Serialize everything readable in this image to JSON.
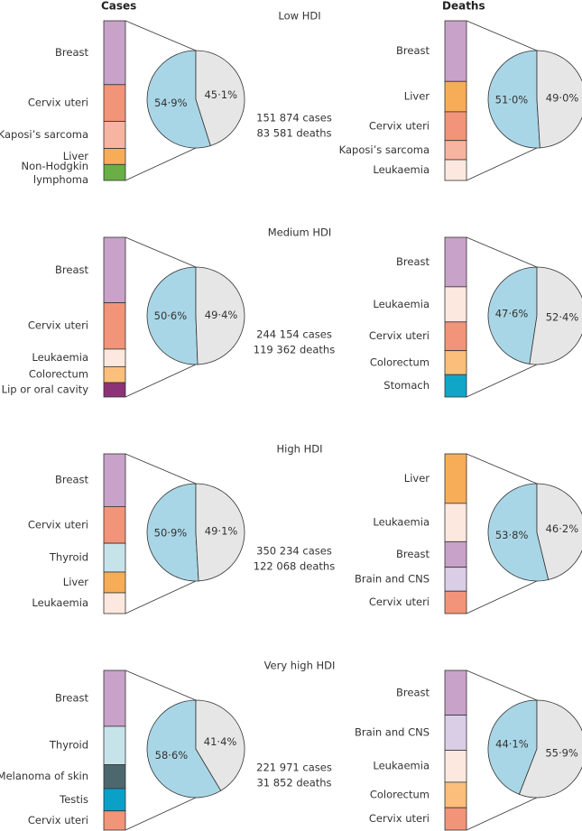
{
  "headers": {
    "cases": "Cases",
    "deaths": "Deaths"
  },
  "chart_data": [
    {
      "type": "pie-of-bar",
      "title": "Low HDI",
      "summary": [
        "151 874 cases",
        "83 581 deaths"
      ],
      "cases": {
        "pie": {
          "values": [
            54.9,
            45.1
          ],
          "value_labels": [
            "54·9%",
            "45·1%"
          ],
          "colors": [
            "#a9d6e6",
            "#e6e6e6"
          ]
        },
        "bar": {
          "categories": [
            "Breast",
            "Cervix uteri",
            "Kaposi’s sarcoma",
            "Liver",
            "Non-Hodgkin lymphoma"
          ],
          "values": [
            40,
            23,
            17,
            10,
            10
          ],
          "colors": [
            "#c8a2c8",
            "#f29479",
            "#f7b5a1",
            "#f7ad58",
            "#6aae46"
          ]
        }
      },
      "deaths": {
        "pie": {
          "values": [
            51.0,
            49.0
          ],
          "value_labels": [
            "51·0%",
            "49·0%"
          ],
          "colors": [
            "#a9d6e6",
            "#e6e6e6"
          ]
        },
        "bar": {
          "categories": [
            "Breast",
            "Liver",
            "Cervix uteri",
            "Kaposi’s sarcoma",
            "Leukaemia"
          ],
          "values": [
            38,
            19,
            18,
            12,
            13
          ],
          "colors": [
            "#c8a2c8",
            "#f7ad58",
            "#f29479",
            "#f7b5a1",
            "#fde8df"
          ]
        }
      }
    },
    {
      "type": "pie-of-bar",
      "title": "Medium HDI",
      "summary": [
        "244 154 cases",
        "119 362 deaths"
      ],
      "cases": {
        "pie": {
          "values": [
            50.6,
            49.4
          ],
          "value_labels": [
            "50·6%",
            "49·4%"
          ],
          "colors": [
            "#a9d6e6",
            "#e6e6e6"
          ]
        },
        "bar": {
          "categories": [
            "Breast",
            "Cervix uteri",
            "Leukaemia",
            "Colorectum",
            "Lip or oral cavity"
          ],
          "values": [
            41,
            29,
            11,
            10,
            9
          ],
          "colors": [
            "#c8a2c8",
            "#f29479",
            "#fde8df",
            "#fbbf7b",
            "#8c3378"
          ]
        }
      },
      "deaths": {
        "pie": {
          "values": [
            47.6,
            52.4
          ],
          "value_labels": [
            "47·6%",
            "52·4%"
          ],
          "colors": [
            "#a9d6e6",
            "#e6e6e6"
          ]
        },
        "bar": {
          "categories": [
            "Breast",
            "Leukaemia",
            "Cervix uteri",
            "Colorectum",
            "Stomach"
          ],
          "values": [
            31,
            22,
            18,
            15,
            14
          ],
          "colors": [
            "#c8a2c8",
            "#fde8df",
            "#f29479",
            "#fbbf7b",
            "#0fa6c7"
          ]
        }
      }
    },
    {
      "type": "pie-of-bar",
      "title": "High HDI",
      "summary": [
        "350 234 cases",
        "122 068 deaths"
      ],
      "cases": {
        "pie": {
          "values": [
            50.9,
            49.1
          ],
          "value_labels": [
            "50·9%",
            "49·1%"
          ],
          "colors": [
            "#a9d6e6",
            "#e6e6e6"
          ]
        },
        "bar": {
          "categories": [
            "Breast",
            "Cervix uteri",
            "Thyroid",
            "Liver",
            "Leukaemia"
          ],
          "values": [
            33,
            23,
            18,
            13,
            13
          ],
          "colors": [
            "#c8a2c8",
            "#f29479",
            "#c7e3ea",
            "#f7ad58",
            "#fde8df"
          ]
        }
      },
      "deaths": {
        "pie": {
          "values": [
            53.8,
            46.2
          ],
          "value_labels": [
            "53·8%",
            "46·2%"
          ],
          "colors": [
            "#a9d6e6",
            "#e6e6e6"
          ]
        },
        "bar": {
          "categories": [
            "Liver",
            "Leukaemia",
            "Breast",
            "Brain and CNS",
            "Cervix uteri"
          ],
          "values": [
            31,
            24,
            16,
            15,
            14
          ],
          "colors": [
            "#f7ad58",
            "#fde8df",
            "#c8a2c8",
            "#dacde6",
            "#f29479"
          ]
        }
      }
    },
    {
      "type": "pie-of-bar",
      "title": "Very high HDI",
      "summary": [
        "221 971 cases",
        "31 852 deaths"
      ],
      "cases": {
        "pie": {
          "values": [
            58.6,
            41.4
          ],
          "value_labels": [
            "58·6%",
            "41·4%"
          ],
          "colors": [
            "#a9d6e6",
            "#e6e6e6"
          ]
        },
        "bar": {
          "categories": [
            "Breast",
            "Thyroid",
            "Melanoma of skin",
            "Testis",
            "Cervix uteri"
          ],
          "values": [
            35,
            24,
            15,
            14,
            12
          ],
          "colors": [
            "#c8a2c8",
            "#c7e3ea",
            "#4d676e",
            "#0aa0c8",
            "#f29479"
          ]
        }
      },
      "deaths": {
        "pie": {
          "values": [
            44.1,
            55.9
          ],
          "value_labels": [
            "44·1%",
            "55·9%"
          ],
          "colors": [
            "#a9d6e6",
            "#e6e6e6"
          ]
        },
        "bar": {
          "categories": [
            "Breast",
            "Brain and CNS",
            "Leukaemia",
            "Colorectum",
            "Cervix uteri"
          ],
          "values": [
            28,
            22,
            20,
            16,
            14
          ],
          "colors": [
            "#c8a2c8",
            "#dacde6",
            "#fde8df",
            "#fbbf7b",
            "#f29479"
          ]
        }
      }
    }
  ]
}
